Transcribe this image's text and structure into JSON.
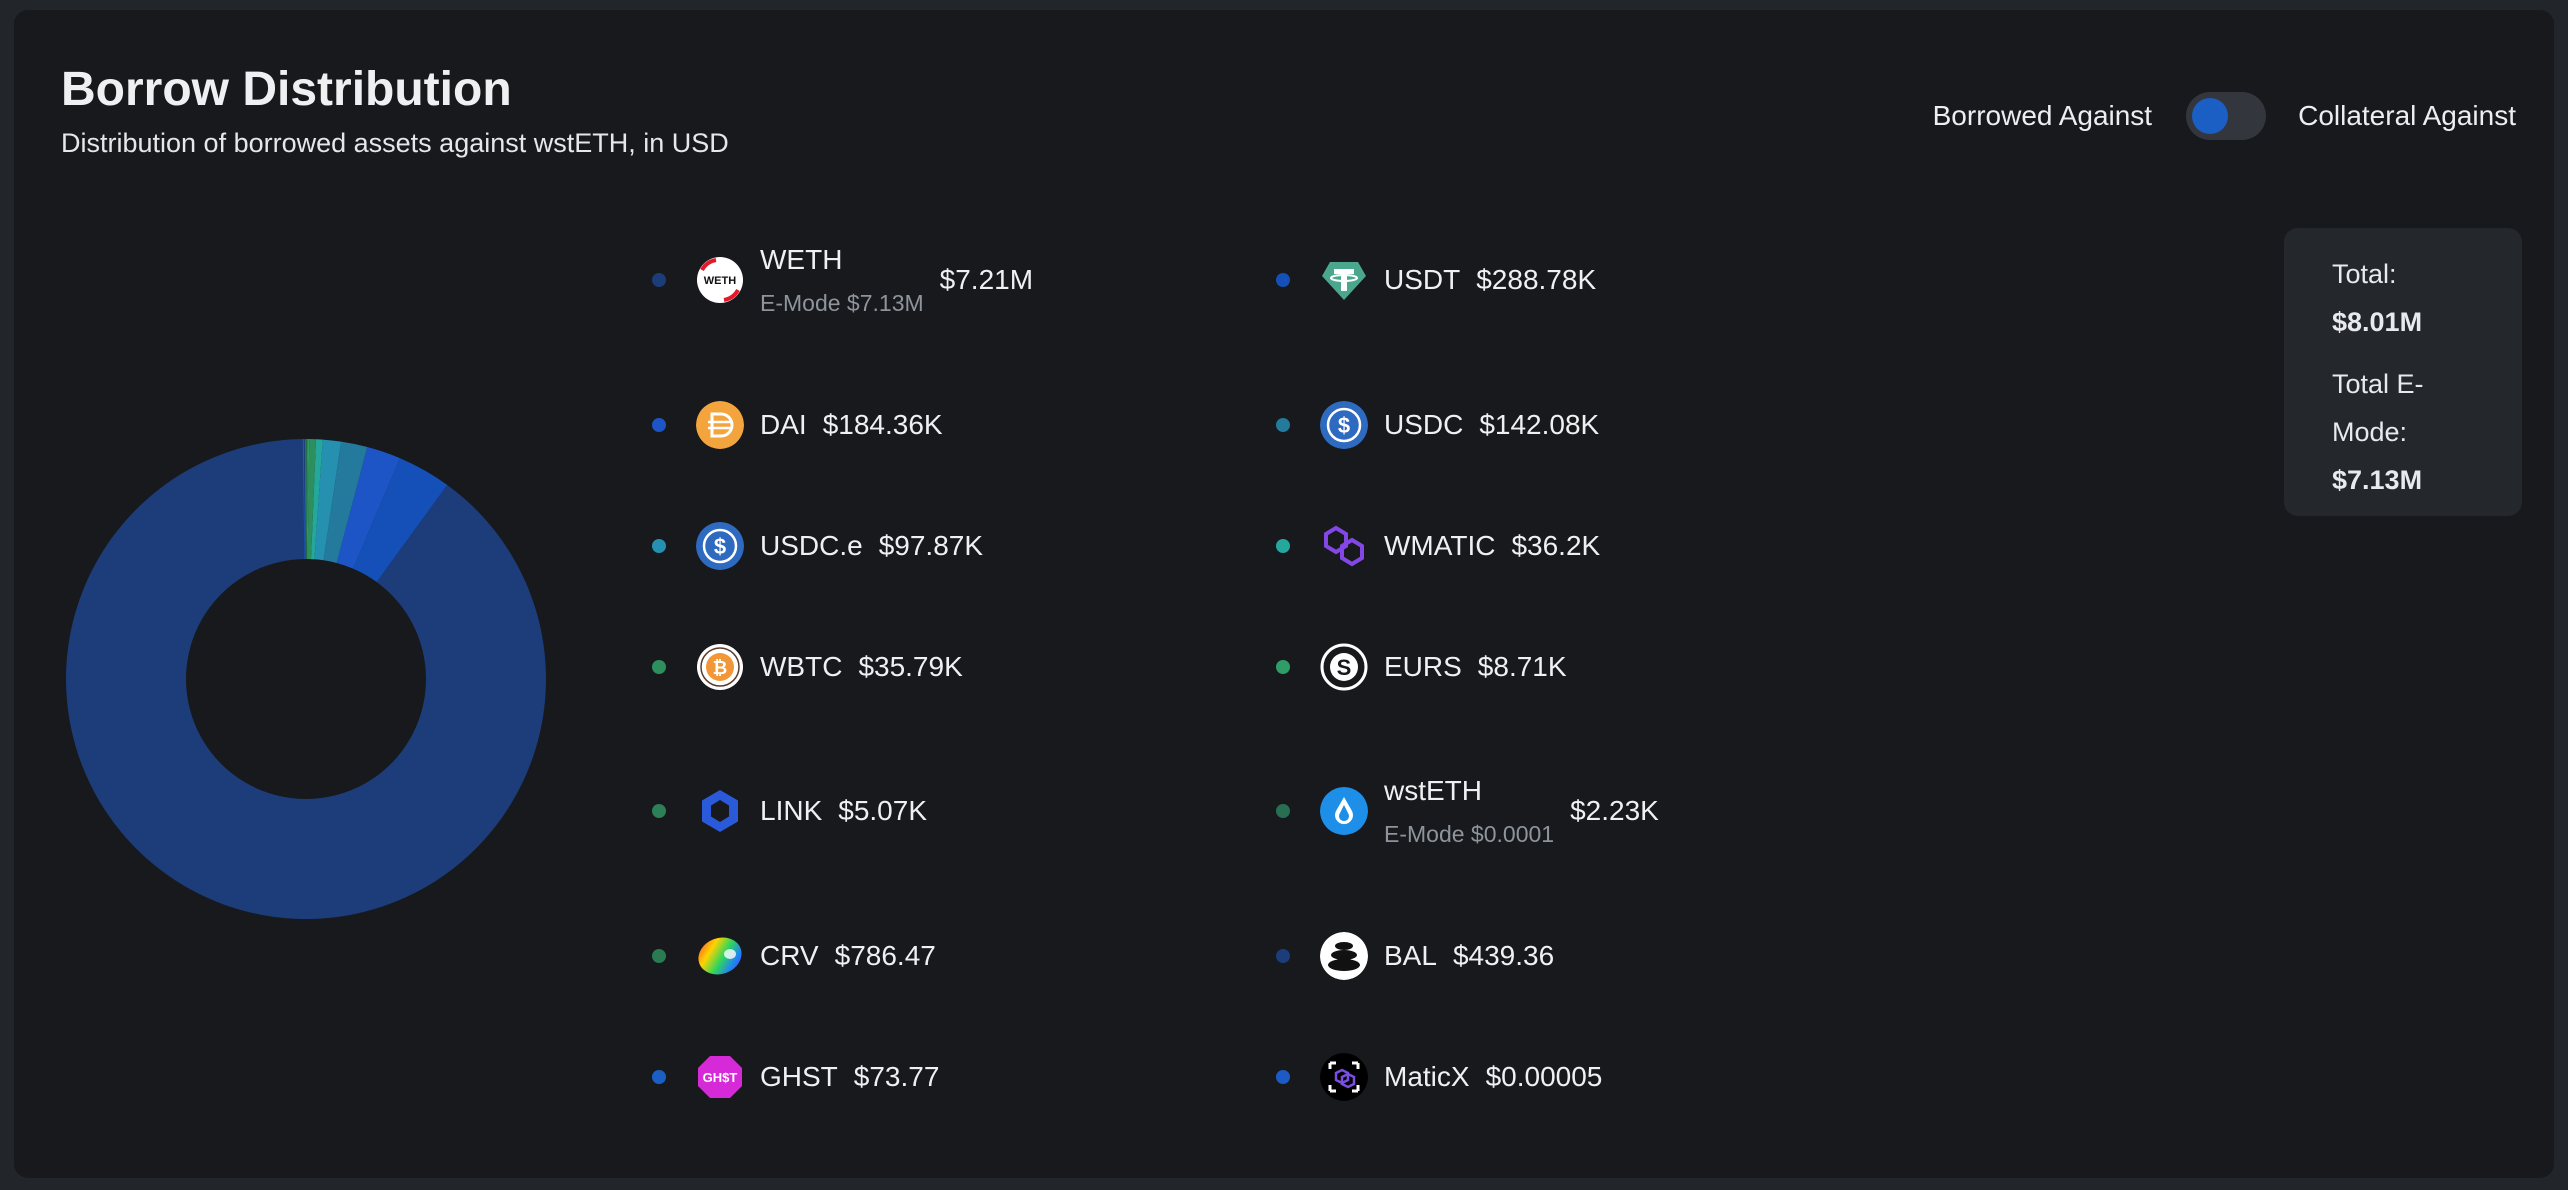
{
  "header": {
    "title": "Borrow Distribution",
    "subtitle": "Distribution of borrowed assets against wstETH, in USD"
  },
  "toggle": {
    "left_label": "Borrowed Against",
    "right_label": "Collateral Against",
    "active": "left"
  },
  "totals": {
    "total_label": "Total:",
    "total_value": "$8.01M",
    "emode_label": "Total E-Mode:",
    "emode_value": "$7.13M"
  },
  "colors": {
    "weth": "#1c3d7a",
    "usdt": "#1450b8",
    "dai": "#1d55c7",
    "usdc": "#237a9c",
    "usdce": "#2590b0",
    "wmatic": "#24a79c",
    "wbtc": "#2e8f5e",
    "eurs": "#2f9d66",
    "link": "#2c7f57",
    "wsteth": "#276e52",
    "crv": "#2a7a52",
    "bal": "#1c3d7a",
    "ghst": "#1b5fc4",
    "maticx": "#1c5ac6"
  },
  "assets": [
    {
      "id": "weth",
      "name": "WETH",
      "value": "$7.21M",
      "emode": "E-Mode $7.13M",
      "icon": "weth-icon"
    },
    {
      "id": "usdt",
      "name": "USDT",
      "value": "$288.78K",
      "emode": "",
      "icon": "usdt-icon"
    },
    {
      "id": "dai",
      "name": "DAI",
      "value": "$184.36K",
      "emode": "",
      "icon": "dai-icon"
    },
    {
      "id": "usdc",
      "name": "USDC",
      "value": "$142.08K",
      "emode": "",
      "icon": "usdc-icon"
    },
    {
      "id": "usdce",
      "name": "USDC.e",
      "value": "$97.87K",
      "emode": "",
      "icon": "usdc-icon"
    },
    {
      "id": "wmatic",
      "name": "WMATIC",
      "value": "$36.2K",
      "emode": "",
      "icon": "polygon-icon"
    },
    {
      "id": "wbtc",
      "name": "WBTC",
      "value": "$35.79K",
      "emode": "",
      "icon": "bitcoin-icon"
    },
    {
      "id": "eurs",
      "name": "EURS",
      "value": "$8.71K",
      "emode": "",
      "icon": "eurs-icon"
    },
    {
      "id": "link",
      "name": "LINK",
      "value": "$5.07K",
      "emode": "",
      "icon": "chainlink-icon"
    },
    {
      "id": "wsteth",
      "name": "wstETH",
      "value": "$2.23K",
      "emode": "E-Mode $0.0001",
      "icon": "lido-icon"
    },
    {
      "id": "crv",
      "name": "CRV",
      "value": "$786.47",
      "emode": "",
      "icon": "curve-icon"
    },
    {
      "id": "bal",
      "name": "BAL",
      "value": "$439.36",
      "emode": "",
      "icon": "balancer-icon"
    },
    {
      "id": "ghst",
      "name": "GHST",
      "value": "$73.77",
      "emode": "",
      "icon": "ghst-icon"
    },
    {
      "id": "maticx",
      "name": "MaticX",
      "value": "$0.00005",
      "emode": "",
      "icon": "maticx-icon"
    }
  ],
  "chart_data": {
    "type": "pie",
    "title": "Borrow Distribution",
    "subtitle": "Distribution of borrowed assets against wstETH, in USD",
    "donut": true,
    "categories": [
      "WETH",
      "USDT",
      "DAI",
      "USDC",
      "USDC.e",
      "WMATIC",
      "WBTC",
      "EURS",
      "LINK",
      "wstETH",
      "CRV",
      "BAL",
      "GHST",
      "MaticX"
    ],
    "values": [
      7210000,
      288780,
      184360,
      142080,
      97870,
      36200,
      35790,
      8710,
      5070,
      2230,
      786.47,
      439.36,
      73.77,
      5e-05
    ],
    "unit": "USD",
    "legend_placement": "right"
  }
}
